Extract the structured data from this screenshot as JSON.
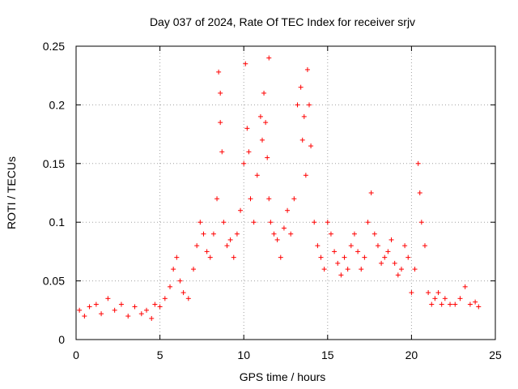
{
  "chart_data": {
    "type": "scatter",
    "title": "Day 037 of 2024, Rate Of TEC Index for receiver srjv",
    "xlabel": "GPS time / hours",
    "ylabel": "ROTI / TECUs",
    "xlim": [
      0,
      25
    ],
    "ylim": [
      0,
      0.25
    ],
    "xticks": [
      0,
      5,
      10,
      15,
      20,
      25
    ],
    "yticks": [
      0,
      0.05,
      0.1,
      0.15,
      0.2,
      0.25
    ],
    "xtick_labels": [
      "0",
      "5",
      "10",
      "15",
      "20",
      "25"
    ],
    "ytick_labels": [
      "0",
      "0.05",
      "0.1",
      "0.15",
      "0.2",
      "0.25"
    ],
    "grid": true,
    "marker": "+",
    "color": "#ff0000",
    "series": [
      {
        "name": "ROTI",
        "x": [
          0.2,
          0.5,
          0.8,
          1.2,
          1.5,
          1.9,
          2.3,
          2.7,
          3.1,
          3.5,
          3.9,
          4.2,
          4.5,
          4.7,
          5.0,
          5.3,
          5.6,
          5.8,
          6.0,
          6.2,
          6.4,
          6.7,
          7.0,
          7.2,
          7.4,
          7.6,
          7.8,
          8.0,
          8.2,
          8.4,
          8.5,
          8.6,
          8.6,
          8.7,
          8.8,
          9.0,
          9.2,
          9.4,
          9.6,
          9.8,
          10.0,
          10.1,
          10.2,
          10.3,
          10.4,
          10.6,
          10.8,
          11.0,
          11.1,
          11.2,
          11.3,
          11.4,
          11.5,
          11.5,
          11.6,
          11.8,
          12.0,
          12.2,
          12.4,
          12.6,
          12.8,
          13.0,
          13.2,
          13.4,
          13.5,
          13.6,
          13.7,
          13.8,
          13.9,
          14.0,
          14.2,
          14.4,
          14.6,
          14.8,
          15.0,
          15.2,
          15.4,
          15.6,
          15.8,
          16.0,
          16.2,
          16.4,
          16.6,
          16.8,
          17.0,
          17.2,
          17.4,
          17.6,
          17.8,
          18.0,
          18.2,
          18.4,
          18.6,
          18.8,
          19.0,
          19.2,
          19.4,
          19.6,
          19.8,
          20.0,
          20.2,
          20.4,
          20.5,
          20.6,
          20.8,
          21.0,
          21.2,
          21.4,
          21.6,
          21.8,
          22.0,
          22.3,
          22.6,
          22.9,
          23.2,
          23.5,
          23.8,
          24.0
        ],
        "y": [
          0.025,
          0.02,
          0.028,
          0.03,
          0.022,
          0.035,
          0.025,
          0.03,
          0.02,
          0.028,
          0.022,
          0.025,
          0.018,
          0.03,
          0.028,
          0.035,
          0.045,
          0.06,
          0.07,
          0.05,
          0.04,
          0.035,
          0.06,
          0.08,
          0.1,
          0.09,
          0.075,
          0.07,
          0.09,
          0.12,
          0.228,
          0.21,
          0.185,
          0.16,
          0.1,
          0.08,
          0.085,
          0.07,
          0.09,
          0.11,
          0.15,
          0.235,
          0.18,
          0.16,
          0.12,
          0.1,
          0.14,
          0.19,
          0.17,
          0.21,
          0.185,
          0.155,
          0.24,
          0.12,
          0.1,
          0.09,
          0.085,
          0.07,
          0.095,
          0.11,
          0.09,
          0.12,
          0.2,
          0.215,
          0.17,
          0.19,
          0.14,
          0.23,
          0.2,
          0.165,
          0.1,
          0.08,
          0.07,
          0.06,
          0.1,
          0.09,
          0.075,
          0.065,
          0.055,
          0.07,
          0.06,
          0.08,
          0.09,
          0.075,
          0.06,
          0.07,
          0.1,
          0.125,
          0.09,
          0.08,
          0.065,
          0.07,
          0.075,
          0.085,
          0.065,
          0.055,
          0.06,
          0.08,
          0.07,
          0.04,
          0.06,
          0.15,
          0.125,
          0.1,
          0.08,
          0.04,
          0.03,
          0.035,
          0.04,
          0.03,
          0.035,
          0.03,
          0.03,
          0.035,
          0.045,
          0.03,
          0.032,
          0.028
        ]
      }
    ]
  }
}
